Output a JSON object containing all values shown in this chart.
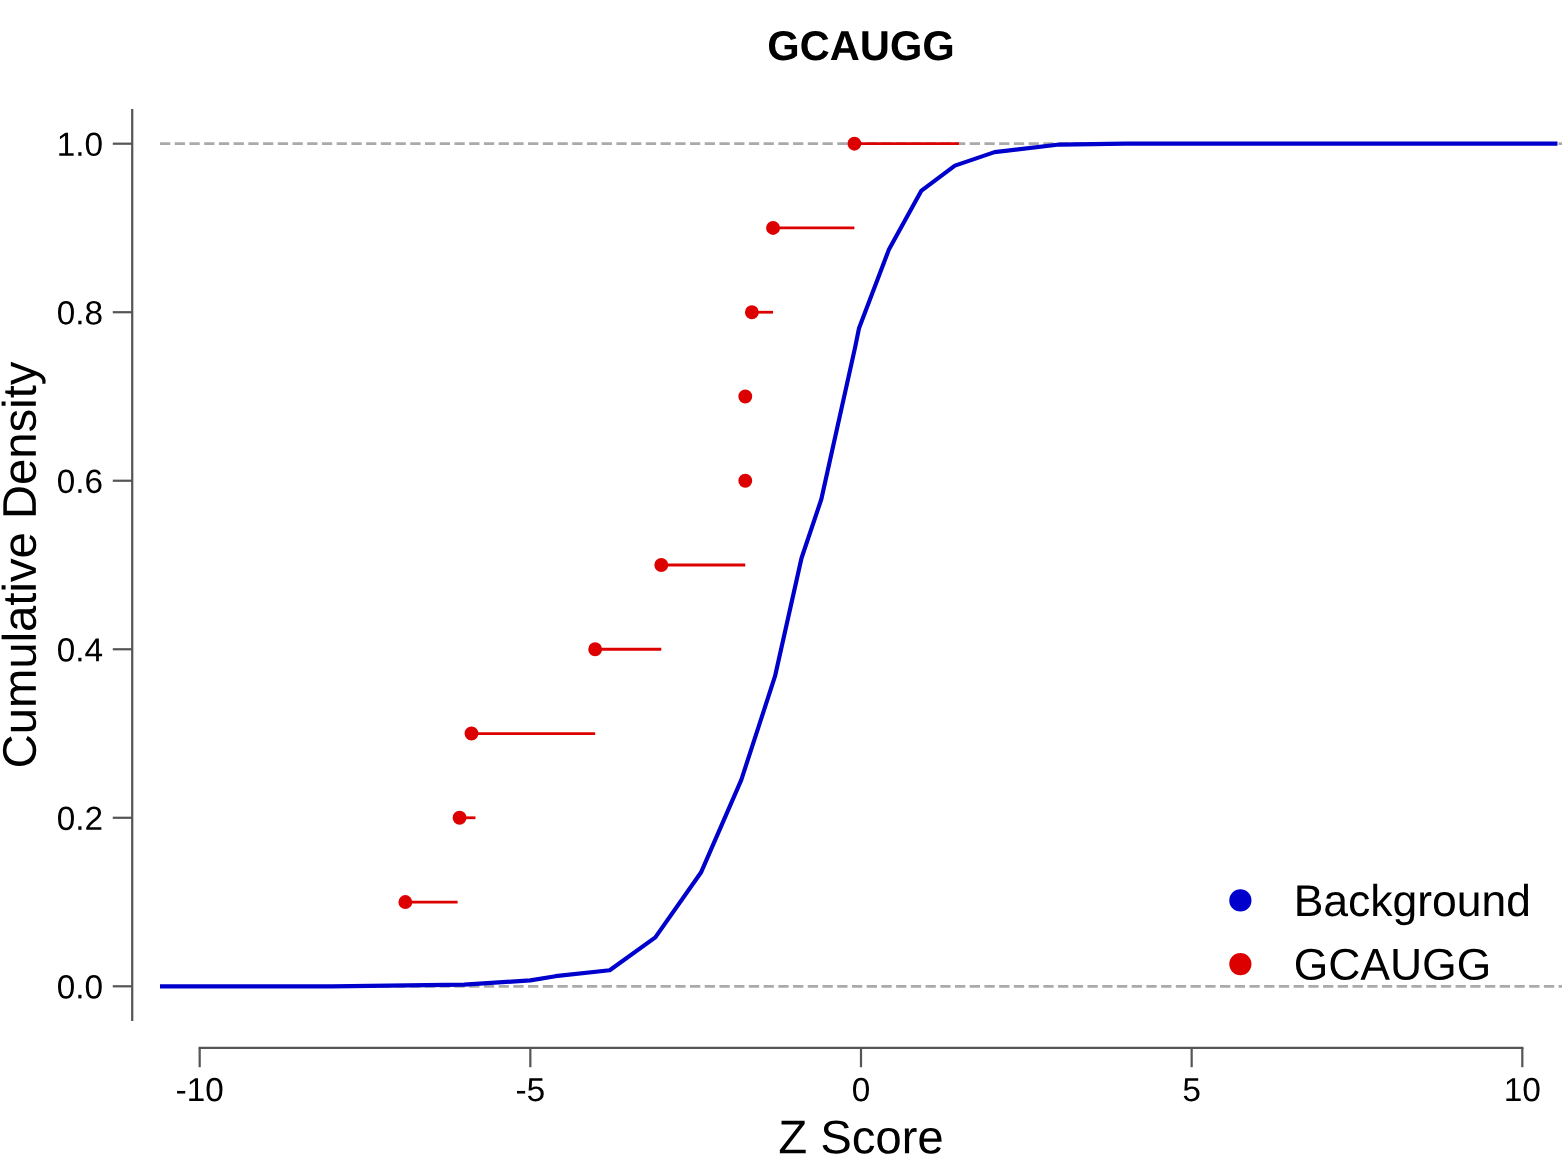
{
  "chart_data": {
    "type": "line",
    "title": "GCAUGG",
    "xlabel": "Z Score",
    "ylabel": "Cumulative Density",
    "xlim": [
      -10.6,
      10.6
    ],
    "xticks": [
      -10,
      -5,
      0,
      5,
      10
    ],
    "ylim": [
      -0.04,
      1.04
    ],
    "yticks": [
      {
        "value": 0,
        "label": "0.0"
      },
      {
        "value": 0.2,
        "label": "0.2"
      },
      {
        "value": 0.4,
        "label": "0.4"
      },
      {
        "value": 0.6,
        "label": "0.6"
      },
      {
        "value": 0.8,
        "label": "0.8"
      },
      {
        "value": 1,
        "label": "1.0"
      }
    ],
    "grid": false,
    "legend": "bottom right",
    "ref_lines": [
      {
        "axis": "y",
        "value": 0,
        "color": "#aaaaaa",
        "line_style": "dashed"
      },
      {
        "axis": "y",
        "value": 1,
        "color": "#aaaaaa",
        "line_style": "dashed"
      }
    ],
    "series": [
      {
        "name": "Background",
        "color": "#0000cc",
        "marker": "none",
        "x": [
          -10.6,
          -8,
          -6,
          -5,
          -4.62,
          -3.8,
          -3.11,
          -2.42,
          -1.81,
          -1.3,
          -0.9,
          -0.6,
          -0.09,
          -0.03,
          0.42,
          0.91,
          1.42,
          2.02,
          3,
          4,
          10.5
        ],
        "values": [
          0,
          0,
          0.002,
          0.007,
          0.012,
          0.019,
          0.058,
          0.135,
          0.245,
          0.368,
          0.508,
          0.578,
          0.758,
          0.781,
          0.874,
          0.944,
          0.974,
          0.99,
          0.999,
          1,
          1
        ]
      },
      {
        "name": "GCAUGG",
        "type": "scatter",
        "color": "#dd0000",
        "marker": "circle",
        "x": [
          -6.89,
          -6.07,
          -5.89,
          -4.02,
          -3.02,
          -1.75,
          -1.75,
          -1.65,
          -1.33,
          -0.1
        ],
        "values": [
          0.1,
          0.2,
          0.3,
          0.4,
          0.5,
          0.6,
          0.7,
          0.8,
          0.9,
          1.0
        ],
        "xerrors": [
          [
            -6.89,
            -6.1
          ],
          [
            -6.07,
            -5.83
          ],
          [
            -5.89,
            -4.02
          ],
          [
            -4.02,
            -3.02
          ],
          [
            -3.02,
            -1.75
          ],
          null,
          [
            -1.75,
            -1.65
          ],
          [
            -1.65,
            -1.33
          ],
          [
            -1.33,
            -0.1
          ],
          [
            -0.1,
            1.48
          ]
        ]
      }
    ]
  }
}
